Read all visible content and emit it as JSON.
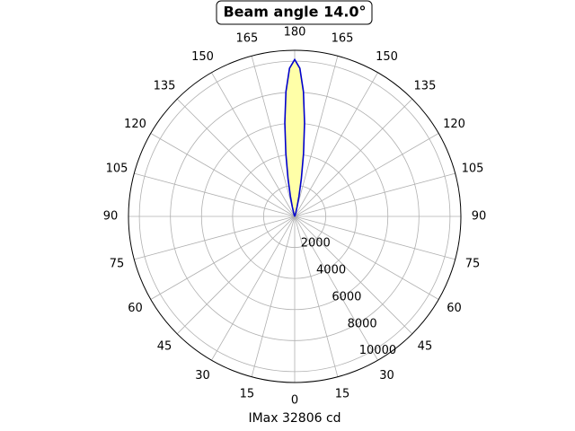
{
  "chart_data": {
    "type": "polar",
    "title": "Beam angle 14.0°",
    "x_label": "IMax 32806 cd",
    "theta": [
      160,
      162,
      164,
      166,
      168,
      170,
      172,
      174,
      176,
      178,
      180,
      182,
      184,
      186,
      188,
      190,
      192,
      194,
      196,
      198,
      200
    ],
    "values": [
      35,
      104,
      272,
      634,
      1323,
      2464,
      4090,
      6072,
      8060,
      9545,
      10100,
      9545,
      8060,
      6072,
      4090,
      2464,
      1323,
      634,
      272,
      104,
      35
    ],
    "line_color": "#0000cc",
    "fill_color": "#ffffa8",
    "rlim": [
      0,
      10700
    ],
    "rticks": [
      2000,
      4000,
      6000,
      8000,
      10000
    ],
    "thetaticks": [
      0,
      15,
      30,
      45,
      60,
      75,
      90,
      105,
      120,
      135,
      150,
      165,
      180,
      {
        "value": 195,
        "label": "165"
      },
      {
        "value": 210,
        "label": "150"
      },
      {
        "value": 225,
        "label": "135"
      },
      {
        "value": 240,
        "label": "120"
      },
      {
        "value": 255,
        "label": "105"
      },
      {
        "value": 270,
        "label": "90"
      },
      {
        "value": 285,
        "label": "75"
      },
      {
        "value": 300,
        "label": "60"
      },
      {
        "value": 315,
        "label": "45"
      },
      {
        "value": 330,
        "label": "30"
      },
      {
        "value": 345,
        "label": "15"
      }
    ],
    "grid": true
  }
}
